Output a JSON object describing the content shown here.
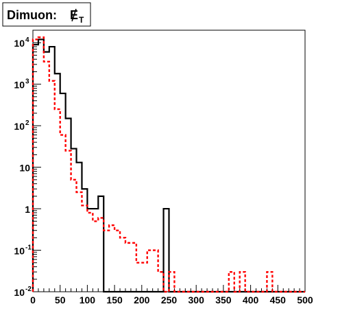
{
  "chart_data": {
    "type": "line",
    "step": true,
    "title": "Dimuon: ",
    "title_symbol": "E",
    "title_subscript": "T",
    "xlabel": "",
    "ylabel": "",
    "xlim": [
      0,
      500
    ],
    "ylim": [
      0.01,
      20000
    ],
    "yscale": "log",
    "grid": false,
    "x_tick_labels": [
      "0",
      "50",
      "100",
      "150",
      "200",
      "250",
      "300",
      "350",
      "400",
      "450",
      "500"
    ],
    "y_tick_labels": [
      {
        "base": "10",
        "exp": "-2"
      },
      {
        "base": "10",
        "exp": "-1"
      },
      {
        "base": "1",
        "exp": ""
      },
      {
        "base": "10",
        "exp": ""
      },
      {
        "base": "10",
        "exp": "2"
      },
      {
        "base": "10",
        "exp": "3"
      },
      {
        "base": "10",
        "exp": "4"
      }
    ],
    "series": [
      {
        "style": "solid",
        "color": "#000000",
        "points": [
          [
            0,
            9000
          ],
          [
            10,
            12000
          ],
          [
            20,
            6000
          ],
          [
            30,
            8000
          ],
          [
            40,
            1800
          ],
          [
            50,
            600
          ],
          [
            60,
            150
          ],
          [
            70,
            28
          ],
          [
            80,
            13
          ],
          [
            90,
            3
          ],
          [
            100,
            1
          ],
          [
            120,
            2
          ],
          [
            130,
            0.01
          ],
          [
            240,
            1
          ],
          [
            250,
            0.01
          ],
          [
            500,
            0.01
          ]
        ]
      },
      {
        "style": "dashed",
        "color": "#ff0000",
        "points": [
          [
            0,
            12000
          ],
          [
            10,
            13500
          ],
          [
            20,
            3500
          ],
          [
            30,
            1200
          ],
          [
            40,
            250
          ],
          [
            50,
            60
          ],
          [
            60,
            25
          ],
          [
            70,
            5
          ],
          [
            80,
            2.5
          ],
          [
            90,
            1.2
          ],
          [
            100,
            0.8
          ],
          [
            110,
            0.5
          ],
          [
            120,
            0.6
          ],
          [
            130,
            0.3
          ],
          [
            140,
            0.4
          ],
          [
            150,
            0.3
          ],
          [
            160,
            0.2
          ],
          [
            170,
            0.15
          ],
          [
            180,
            0.15
          ],
          [
            190,
            0.05
          ],
          [
            200,
            0.05
          ],
          [
            210,
            0.1
          ],
          [
            220,
            0.1
          ],
          [
            230,
            0.03
          ],
          [
            240,
            0.01
          ],
          [
            250,
            0.03
          ],
          [
            260,
            0.01
          ],
          [
            360,
            0.03
          ],
          [
            370,
            0.01
          ],
          [
            380,
            0.03
          ],
          [
            390,
            0.01
          ],
          [
            430,
            0.03
          ],
          [
            440,
            0.01
          ],
          [
            500,
            0.01
          ]
        ]
      }
    ]
  }
}
